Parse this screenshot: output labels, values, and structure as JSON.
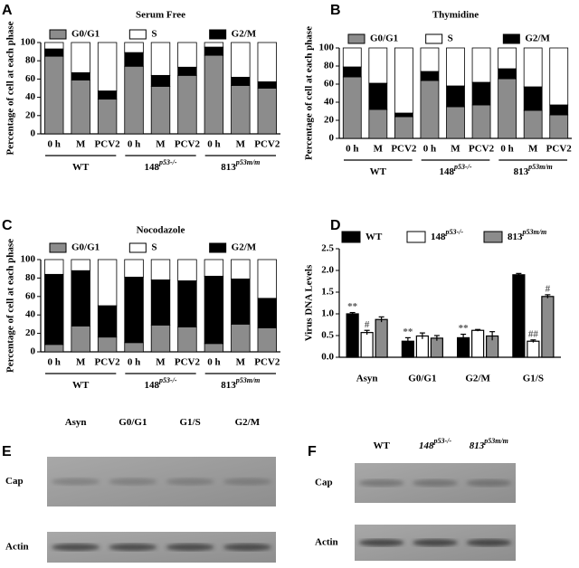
{
  "chart_data": [
    {
      "type": "stacked_bar",
      "panel": "A",
      "title": "Serum Free",
      "y_label": "Percentage of cell at each phase",
      "categories": [
        "0 h",
        "M",
        "PCV2",
        "0 h",
        "M",
        "PCV2",
        "0 h",
        "M",
        "PCV2"
      ],
      "groups": [
        {
          "text": "WT"
        },
        {
          "text": "148",
          "sup": "p53-/-"
        },
        {
          "text": "813",
          "sup": "p53m/m"
        }
      ],
      "series": [
        {
          "name": "G0/G1",
          "color": "#8c8c8c",
          "values": [
            85,
            59,
            38,
            74,
            52,
            64,
            86,
            53,
            50
          ]
        },
        {
          "name": "G2/M",
          "color": "#000000",
          "values": [
            8,
            8,
            9,
            15,
            12,
            9,
            9,
            9,
            7
          ]
        },
        {
          "name": "S",
          "color": "#ffffff",
          "values": [
            7,
            33,
            53,
            11,
            36,
            27,
            5,
            38,
            43
          ]
        }
      ],
      "ylim": [
        0,
        100
      ],
      "yticks": [
        0,
        20,
        40,
        60,
        80,
        100
      ]
    },
    {
      "type": "stacked_bar",
      "panel": "B",
      "title": "Thymidine",
      "y_label": "Percentage of cell at each phase",
      "categories": [
        "0 h",
        "M",
        "PCV2",
        "0 h",
        "M",
        "PCV2",
        "0 h",
        "M",
        "PCV2"
      ],
      "groups": [
        {
          "text": "WT"
        },
        {
          "text": "148",
          "sup": "p53-/-"
        },
        {
          "text": "813",
          "sup": "p53m/m"
        }
      ],
      "series": [
        {
          "name": "G0/G1",
          "color": "#8c8c8c",
          "values": [
            68,
            32,
            24,
            64,
            35,
            37,
            66,
            31,
            26
          ]
        },
        {
          "name": "G2/M",
          "color": "#000000",
          "values": [
            11,
            29,
            4,
            10,
            23,
            25,
            11,
            26,
            11
          ]
        },
        {
          "name": "S",
          "color": "#ffffff",
          "values": [
            21,
            39,
            72,
            26,
            42,
            38,
            23,
            43,
            63
          ]
        }
      ],
      "ylim": [
        0,
        100
      ],
      "yticks": [
        0,
        20,
        40,
        60,
        80,
        100
      ]
    },
    {
      "type": "stacked_bar",
      "panel": "C",
      "title": "Nocodazole",
      "y_label": "Percentage of cell at each phase",
      "categories": [
        "0 h",
        "M",
        "PCV2",
        "0 h",
        "M",
        "PCV2",
        "0 h",
        "M",
        "PCV2"
      ],
      "groups": [
        {
          "text": "WT"
        },
        {
          "text": "148",
          "sup": "p53-/-"
        },
        {
          "text": "813",
          "sup": "p53m/m"
        }
      ],
      "series": [
        {
          "name": "G0/G1",
          "color": "#8c8c8c",
          "values": [
            8,
            28,
            16,
            10,
            29,
            27,
            9,
            30,
            26
          ]
        },
        {
          "name": "G2/M",
          "color": "#000000",
          "values": [
            76,
            60,
            34,
            71,
            49,
            50,
            73,
            49,
            32
          ]
        },
        {
          "name": "S",
          "color": "#ffffff",
          "values": [
            16,
            12,
            50,
            19,
            22,
            23,
            18,
            21,
            42
          ]
        }
      ],
      "ylim": [
        0,
        100
      ],
      "yticks": [
        0,
        20,
        40,
        60,
        80,
        100
      ]
    },
    {
      "type": "grouped_bar",
      "panel": "D",
      "y_label": "Virus DNA Levels",
      "categories": [
        "Asyn",
        "G0/G1",
        "G2/M",
        "G1/S"
      ],
      "series": [
        {
          "name": "WT",
          "color": "#000000",
          "values": [
            1.0,
            0.37,
            0.45,
            1.9
          ],
          "errors": [
            0.03,
            0.08,
            0.08,
            0.03
          ],
          "annotations": [
            "**",
            "**",
            "**",
            null
          ]
        },
        {
          "name": "148",
          "sup": "p53-/-",
          "color": "#ffffff",
          "values": [
            0.57,
            0.49,
            0.62,
            0.37
          ],
          "errors": [
            0.05,
            0.07,
            0.02,
            0.03
          ],
          "annotations": [
            "#",
            null,
            null,
            "##"
          ]
        },
        {
          "name": "813",
          "sup": "p53m/m",
          "color": "#8c8c8c",
          "values": [
            0.87,
            0.44,
            0.49,
            1.4
          ],
          "errors": [
            0.06,
            0.06,
            0.1,
            0.04
          ],
          "annotations": [
            null,
            null,
            null,
            "#"
          ]
        }
      ],
      "ylim": [
        0,
        2.5
      ],
      "yticks": [
        {
          "value": 0,
          "label": "0.0"
        },
        0.5,
        {
          "value": 1,
          "label": "1.0"
        },
        1.5,
        {
          "value": 2,
          "label": "2.0"
        },
        2.5
      ]
    }
  ],
  "blots": [
    {
      "panel": "E",
      "lanes": [
        {
          "text": "Asyn"
        },
        {
          "text": "G0/G1"
        },
        {
          "text": "G1/S"
        },
        {
          "text": "G2/M"
        }
      ],
      "rows": [
        "Cap",
        "Actin"
      ]
    },
    {
      "panel": "F",
      "lanes": [
        {
          "text": "WT"
        },
        {
          "text": "148",
          "sup": "p53-/-"
        },
        {
          "text": "813",
          "sup": "p53m/m"
        }
      ],
      "rows": [
        "Cap",
        "Actin"
      ]
    }
  ]
}
